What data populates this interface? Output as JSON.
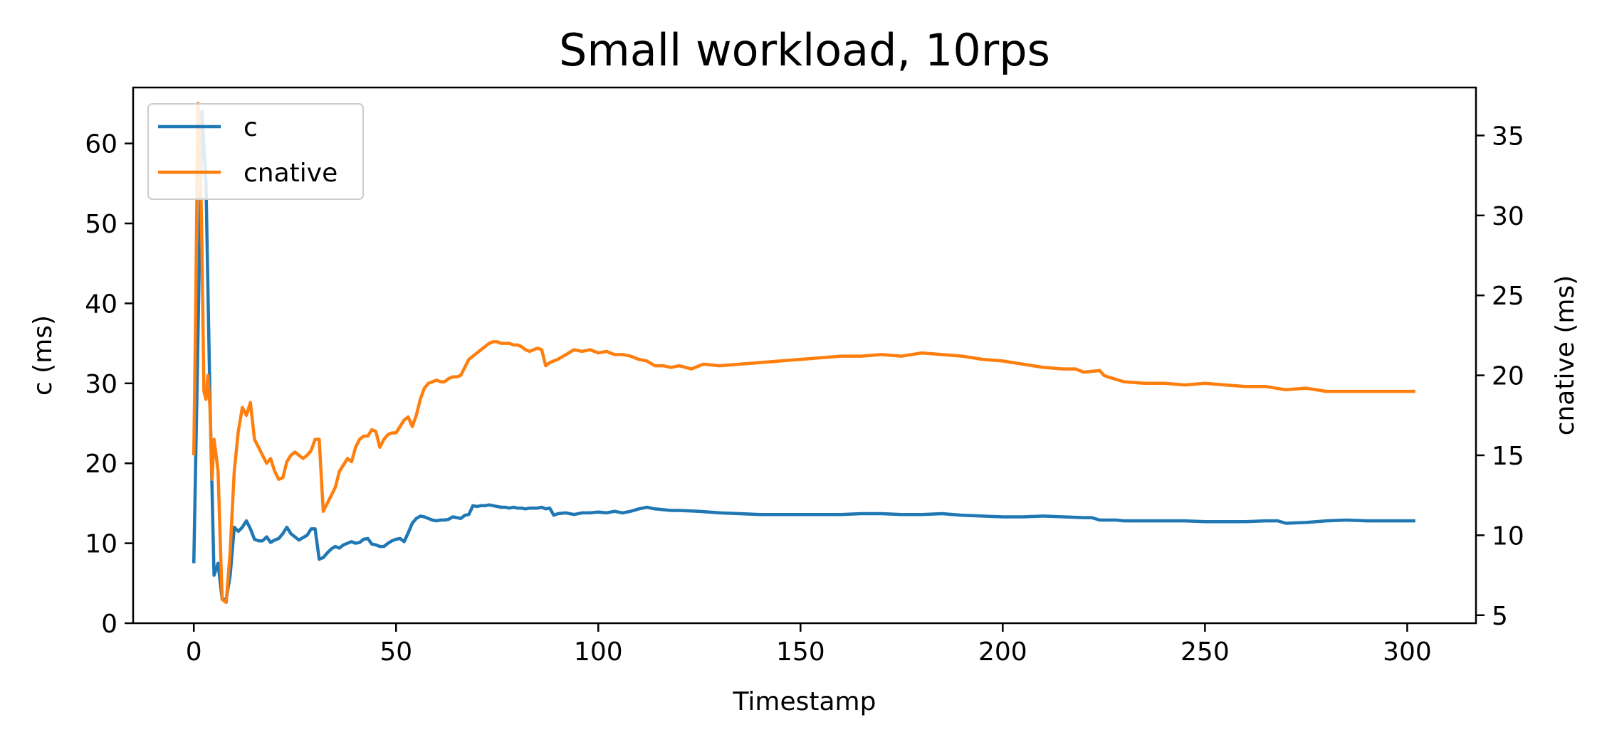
{
  "chart_data": {
    "type": "line",
    "title": "Small workload, 10rps",
    "xlabel": "Timestamp",
    "ylabel_left": "c (ms)",
    "ylabel_right": "cnative (ms)",
    "xlim": [
      -15,
      317
    ],
    "ylim_left": [
      0,
      67
    ],
    "ylim_right": [
      4.5,
      38
    ],
    "xticks": [
      0,
      50,
      100,
      150,
      200,
      250,
      300
    ],
    "yticks_left": [
      0,
      10,
      20,
      30,
      40,
      50,
      60
    ],
    "yticks_right": [
      5,
      10,
      15,
      20,
      25,
      30,
      35
    ],
    "grid": false,
    "legend_position": "upper-left",
    "series": [
      {
        "name": "c",
        "axis": "left",
        "color": "#1f77b4",
        "x": [
          0,
          1,
          2,
          3,
          4,
          5,
          6,
          7,
          8,
          9,
          10,
          11,
          12,
          13,
          14,
          15,
          16,
          17,
          18,
          19,
          20,
          21,
          22,
          23,
          24,
          25,
          26,
          27,
          28,
          29,
          30,
          31,
          32,
          33,
          34,
          35,
          36,
          37,
          38,
          39,
          40,
          41,
          42,
          43,
          44,
          45,
          46,
          47,
          48,
          49,
          50,
          51,
          52,
          53,
          54,
          55,
          56,
          57,
          58,
          59,
          60,
          61,
          62,
          63,
          64,
          65,
          66,
          67,
          68,
          69,
          70,
          71,
          72,
          73,
          74,
          75,
          76,
          77,
          78,
          79,
          80,
          81,
          82,
          83,
          84,
          85,
          86,
          87,
          88,
          89,
          90,
          92,
          94,
          96,
          98,
          100,
          102,
          104,
          106,
          108,
          110,
          112,
          114,
          116,
          118,
          120,
          125,
          130,
          135,
          140,
          145,
          150,
          155,
          160,
          165,
          170,
          175,
          180,
          185,
          190,
          195,
          200,
          205,
          210,
          215,
          220,
          222,
          224,
          226,
          228,
          230,
          235,
          240,
          245,
          250,
          255,
          260,
          265,
          268,
          270,
          275,
          280,
          285,
          290,
          295,
          302
        ],
        "y": [
          7.5,
          35,
          64,
          55,
          28,
          6,
          7.5,
          3,
          3,
          6,
          12,
          11.5,
          12,
          12.8,
          11.8,
          10.5,
          10.3,
          10.3,
          10.8,
          10.1,
          10.4,
          10.6,
          11.2,
          12,
          11.2,
          10.8,
          10.4,
          10.7,
          11,
          11.8,
          11.8,
          8,
          8.2,
          8.8,
          9.3,
          9.6,
          9.4,
          9.8,
          10,
          10.2,
          10,
          10.1,
          10.5,
          10.6,
          9.9,
          9.8,
          9.6,
          9.6,
          10,
          10.3,
          10.5,
          10.6,
          10.2,
          11.3,
          12.5,
          13.1,
          13.4,
          13.3,
          13.1,
          12.9,
          12.8,
          12.9,
          12.9,
          13,
          13.3,
          13.2,
          13.1,
          13.5,
          13.6,
          14.7,
          14.6,
          14.7,
          14.7,
          14.8,
          14.7,
          14.6,
          14.5,
          14.5,
          14.4,
          14.5,
          14.4,
          14.4,
          14.3,
          14.4,
          14.4,
          14.4,
          14.5,
          14.3,
          14.4,
          13.5,
          13.7,
          13.8,
          13.6,
          13.8,
          13.8,
          13.9,
          13.8,
          14,
          13.8,
          14,
          14.3,
          14.5,
          14.3,
          14.2,
          14.1,
          14.1,
          14,
          13.8,
          13.7,
          13.6,
          13.6,
          13.6,
          13.6,
          13.6,
          13.7,
          13.7,
          13.6,
          13.6,
          13.7,
          13.5,
          13.4,
          13.3,
          13.3,
          13.4,
          13.3,
          13.2,
          13.2,
          12.9,
          12.9,
          12.9,
          12.8,
          12.8,
          12.8,
          12.8,
          12.7,
          12.7,
          12.7,
          12.8,
          12.8,
          12.5,
          12.6,
          12.8,
          12.9,
          12.8,
          12.8,
          12.8
        ]
      },
      {
        "name": "cnative",
        "axis": "right",
        "color": "#ff7f0e",
        "x": [
          0,
          0.5,
          1,
          1.5,
          2,
          2.5,
          3,
          3.5,
          4,
          4.5,
          5,
          5.5,
          6,
          6.5,
          7,
          8,
          9,
          10,
          11,
          12,
          13,
          14,
          15,
          16,
          17,
          18,
          19,
          20,
          21,
          22,
          23,
          24,
          25,
          26,
          27,
          28,
          29,
          30,
          31,
          32,
          33,
          34,
          35,
          36,
          37,
          38,
          39,
          40,
          41,
          42,
          43,
          44,
          45,
          46,
          47,
          48,
          49,
          50,
          51,
          52,
          53,
          54,
          55,
          56,
          57,
          58,
          59,
          60,
          61,
          62,
          63,
          64,
          65,
          66,
          67,
          68,
          69,
          70,
          71,
          72,
          73,
          74,
          75,
          76,
          77,
          78,
          79,
          80,
          81,
          82,
          83,
          84,
          85,
          86,
          87,
          88,
          89,
          90,
          92,
          94,
          96,
          98,
          100,
          102,
          104,
          106,
          108,
          110,
          112,
          114,
          116,
          118,
          120,
          123,
          126,
          130,
          135,
          140,
          145,
          150,
          155,
          160,
          165,
          170,
          175,
          180,
          185,
          190,
          195,
          200,
          205,
          210,
          215,
          218,
          220,
          224,
          225,
          226,
          230,
          235,
          240,
          245,
          250,
          255,
          260,
          265,
          270,
          275,
          280,
          285,
          290,
          295,
          302
        ],
        "y": [
          15,
          25,
          37,
          35,
          28,
          19,
          18.5,
          20,
          18,
          13.5,
          16,
          15,
          14,
          10,
          6,
          5.8,
          9,
          14,
          16.5,
          18,
          17.5,
          18.3,
          16,
          15.5,
          15,
          14.5,
          14.8,
          14,
          13.5,
          13.6,
          14.6,
          15,
          15.2,
          15,
          14.8,
          15,
          15.3,
          16,
          16,
          11.5,
          12,
          12.5,
          13,
          14,
          14.4,
          14.8,
          14.6,
          15.5,
          16,
          16.2,
          16.2,
          16.6,
          16.5,
          15.5,
          16,
          16.3,
          16.4,
          16.4,
          16.8,
          17.2,
          17.4,
          16.8,
          17.5,
          18.5,
          19.2,
          19.5,
          19.6,
          19.7,
          19.6,
          19.6,
          19.8,
          19.9,
          19.9,
          20,
          20.5,
          21,
          21.2,
          21.4,
          21.6,
          21.8,
          22.0,
          22.1,
          22.1,
          22.0,
          22.0,
          22.0,
          21.9,
          21.9,
          21.8,
          21.6,
          21.5,
          21.6,
          21.7,
          21.6,
          20.6,
          20.8,
          20.9,
          21.0,
          21.3,
          21.6,
          21.5,
          21.6,
          21.4,
          21.5,
          21.3,
          21.3,
          21.2,
          21.0,
          20.9,
          20.6,
          20.6,
          20.5,
          20.6,
          20.4,
          20.7,
          20.6,
          20.7,
          20.8,
          20.9,
          21.0,
          21.1,
          21.2,
          21.2,
          21.3,
          21.2,
          21.4,
          21.3,
          21.2,
          21.0,
          20.9,
          20.7,
          20.5,
          20.4,
          20.4,
          20.2,
          20.3,
          20.0,
          19.9,
          19.6,
          19.5,
          19.5,
          19.4,
          19.5,
          19.4,
          19.3,
          19.3,
          19.1,
          19.2,
          19.0,
          19.0,
          19.0,
          19.0,
          19.0
        ]
      }
    ]
  }
}
